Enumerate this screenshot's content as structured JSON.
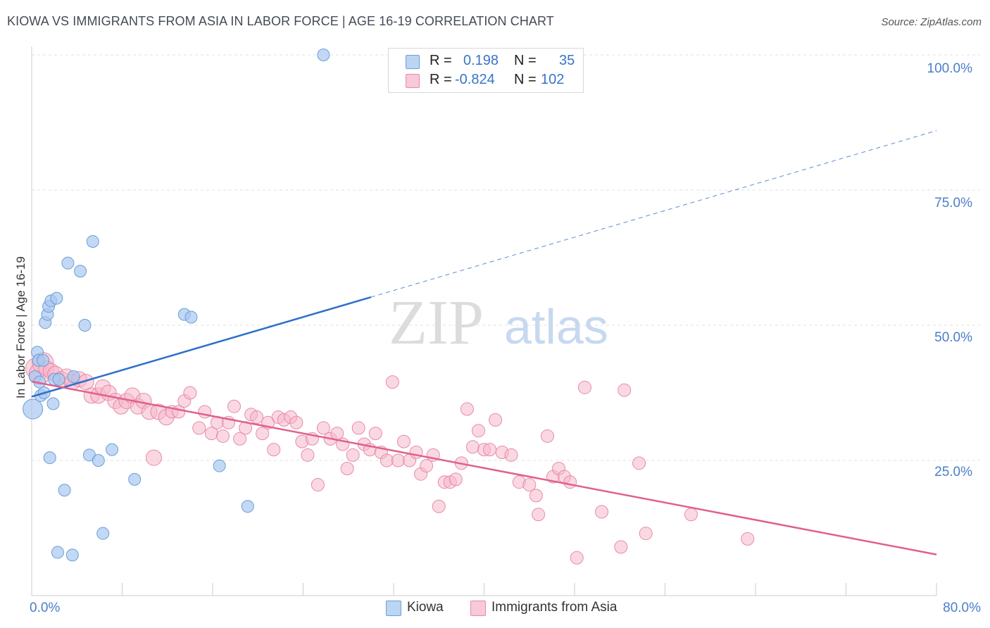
{
  "title": "KIOWA VS IMMIGRANTS FROM ASIA IN LABOR FORCE | AGE 16-19 CORRELATION CHART",
  "source": "Source: ZipAtlas.com",
  "watermark": {
    "zip": "ZIP",
    "atlas": "atlas"
  },
  "legend_top": {
    "rows": [
      {
        "r_label": "R =",
        "r_value": "0.198",
        "n_label": "N =",
        "n_value": "35"
      },
      {
        "r_label": "R =",
        "r_value": "-0.824",
        "n_label": "N =",
        "n_value": "102"
      }
    ]
  },
  "legend_bottom": {
    "kiowa": "Kiowa",
    "asia": "Immigrants from Asia"
  },
  "colors": {
    "kiowa_fill": "#a9c8ef",
    "kiowa_stroke": "#6a9fd8",
    "kiowa_line": "#2f6fca",
    "asia_fill": "#f5b8cb",
    "asia_stroke": "#e88aa8",
    "asia_line": "#e0608e",
    "axis_text": "#4a7ec8",
    "grid": "#e2e2e2"
  },
  "chart_data": {
    "type": "scatter",
    "title": "KIOWA VS IMMIGRANTS FROM ASIA IN LABOR FORCE | AGE 16-19 CORRELATION CHART",
    "xlabel": "",
    "ylabel": "In Labor Force | Age 16-19",
    "xlim": [
      0,
      80
    ],
    "ylim": [
      0,
      100
    ],
    "x_tick_labels": [
      "0.0%",
      "80.0%"
    ],
    "y_tick_labels": [
      "25.0%",
      "50.0%",
      "75.0%",
      "100.0%"
    ],
    "y_ticks": [
      25,
      50,
      75,
      100
    ],
    "series": [
      {
        "name": "Kiowa",
        "r": 0.198,
        "n": 35,
        "points": [
          [
            0.1,
            34.5
          ],
          [
            0.3,
            40.5
          ],
          [
            0.5,
            45
          ],
          [
            0.6,
            43.5
          ],
          [
            0.7,
            39.5
          ],
          [
            0.8,
            37
          ],
          [
            1.0,
            43.5
          ],
          [
            1.1,
            37.5
          ],
          [
            1.2,
            50.5
          ],
          [
            1.4,
            52
          ],
          [
            1.5,
            53.5
          ],
          [
            1.6,
            25.5
          ],
          [
            1.7,
            54.5
          ],
          [
            1.9,
            35.5
          ],
          [
            2.0,
            40
          ],
          [
            2.2,
            55
          ],
          [
            2.3,
            8
          ],
          [
            2.9,
            19.5
          ],
          [
            3.2,
            61.5
          ],
          [
            3.6,
            7.5
          ],
          [
            3.7,
            40.5
          ],
          [
            4.3,
            60
          ],
          [
            4.7,
            50
          ],
          [
            5.1,
            26
          ],
          [
            5.4,
            65.5
          ],
          [
            5.9,
            25
          ],
          [
            6.3,
            11.5
          ],
          [
            7.1,
            27
          ],
          [
            9.1,
            21.5
          ],
          [
            13.5,
            52
          ],
          [
            14.1,
            51.5
          ],
          [
            16.6,
            24
          ],
          [
            19.1,
            16.5
          ],
          [
            25.8,
            100
          ],
          [
            2.4,
            40
          ]
        ],
        "trend": {
          "x0": 0,
          "y0": 36.8,
          "x1": 30,
          "y1": 55.2,
          "dash_x1": 80,
          "dash_y1": 86
        }
      },
      {
        "name": "Immigrants from Asia",
        "r": -0.824,
        "n": 102,
        "points": [
          [
            0.4,
            42
          ],
          [
            0.7,
            41
          ],
          [
            1.0,
            43
          ],
          [
            1.3,
            42
          ],
          [
            1.7,
            41.5
          ],
          [
            2.1,
            41
          ],
          [
            2.6,
            40
          ],
          [
            3.1,
            40.5
          ],
          [
            3.6,
            39.5
          ],
          [
            4.2,
            40
          ],
          [
            4.8,
            39.5
          ],
          [
            5.3,
            37
          ],
          [
            5.9,
            37
          ],
          [
            6.3,
            38.5
          ],
          [
            6.8,
            37.5
          ],
          [
            7.4,
            36
          ],
          [
            7.9,
            35
          ],
          [
            8.4,
            36
          ],
          [
            8.9,
            37
          ],
          [
            9.4,
            35
          ],
          [
            9.9,
            36
          ],
          [
            10.4,
            34
          ],
          [
            10.8,
            25.5
          ],
          [
            11.2,
            34
          ],
          [
            11.9,
            33
          ],
          [
            12.4,
            34
          ],
          [
            13.0,
            34
          ],
          [
            13.5,
            36
          ],
          [
            14.0,
            37.5
          ],
          [
            14.8,
            31
          ],
          [
            15.3,
            34
          ],
          [
            15.9,
            30
          ],
          [
            16.4,
            32
          ],
          [
            16.9,
            29.5
          ],
          [
            17.4,
            32
          ],
          [
            17.9,
            35
          ],
          [
            18.4,
            29
          ],
          [
            18.9,
            31
          ],
          [
            19.4,
            33.5
          ],
          [
            19.9,
            33
          ],
          [
            20.4,
            30
          ],
          [
            20.9,
            32
          ],
          [
            21.4,
            27
          ],
          [
            21.8,
            33
          ],
          [
            22.3,
            32.5
          ],
          [
            22.9,
            33
          ],
          [
            23.4,
            32
          ],
          [
            23.9,
            28.5
          ],
          [
            24.4,
            26
          ],
          [
            24.8,
            29
          ],
          [
            25.3,
            20.5
          ],
          [
            25.8,
            31
          ],
          [
            26.4,
            29
          ],
          [
            27.0,
            30
          ],
          [
            27.5,
            28
          ],
          [
            27.9,
            23.5
          ],
          [
            28.4,
            26
          ],
          [
            28.9,
            31
          ],
          [
            29.4,
            28
          ],
          [
            29.9,
            27
          ],
          [
            30.4,
            30
          ],
          [
            30.9,
            26.5
          ],
          [
            31.4,
            25
          ],
          [
            31.9,
            39.5
          ],
          [
            32.4,
            25
          ],
          [
            32.9,
            28.5
          ],
          [
            33.4,
            25
          ],
          [
            34.0,
            26.5
          ],
          [
            34.4,
            22.5
          ],
          [
            34.9,
            24
          ],
          [
            35.5,
            26
          ],
          [
            36.0,
            16.5
          ],
          [
            36.5,
            21
          ],
          [
            37.0,
            21
          ],
          [
            37.5,
            21.5
          ],
          [
            38.0,
            24.5
          ],
          [
            38.5,
            34.5
          ],
          [
            39.0,
            27.5
          ],
          [
            39.5,
            30.5
          ],
          [
            40.0,
            27
          ],
          [
            40.5,
            27
          ],
          [
            41.0,
            32.5
          ],
          [
            41.6,
            26.5
          ],
          [
            42.4,
            26
          ],
          [
            43.1,
            21
          ],
          [
            44.0,
            20.5
          ],
          [
            44.6,
            18.5
          ],
          [
            45.6,
            29.5
          ],
          [
            46.1,
            22
          ],
          [
            46.6,
            23.5
          ],
          [
            47.1,
            22
          ],
          [
            47.6,
            21
          ],
          [
            48.2,
            7
          ],
          [
            48.9,
            38.5
          ],
          [
            50.4,
            15.5
          ],
          [
            52.1,
            9
          ],
          [
            52.4,
            38
          ],
          [
            53.7,
            24.5
          ],
          [
            54.3,
            11.5
          ],
          [
            58.3,
            15
          ],
          [
            63.3,
            10.5
          ],
          [
            44.8,
            15
          ]
        ],
        "trend": {
          "x0": 0,
          "y0": 39.6,
          "x1": 80,
          "y1": 7.6
        }
      }
    ]
  }
}
